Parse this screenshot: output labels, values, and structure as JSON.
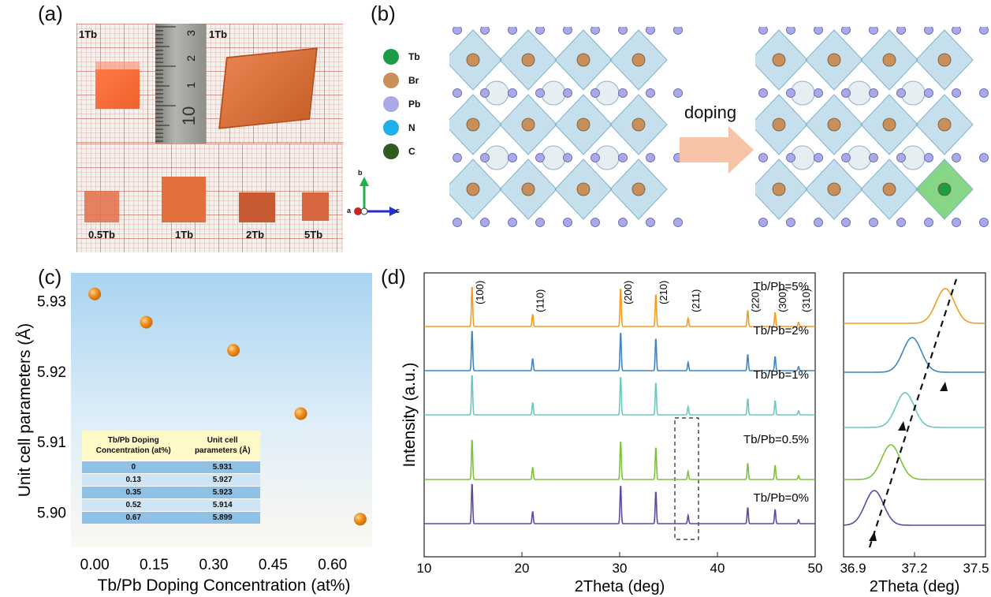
{
  "panels": {
    "a": {
      "letter": "(a)",
      "photo_labels": [
        "1Tb",
        "1Tb"
      ],
      "sample_labels": [
        "0.5Tb",
        "1Tb",
        "2Tb",
        "5Tb"
      ],
      "ruler_marks": [
        "3",
        "2",
        "1",
        "10"
      ],
      "axes": {
        "b": "b",
        "a": "a",
        "c": "c"
      }
    },
    "b": {
      "letter": "(b)",
      "legend": [
        {
          "label": "Tb",
          "color": "#1f9a45"
        },
        {
          "label": "Br",
          "color": "#c98f5a"
        },
        {
          "label": "Pb",
          "color": "#a9a9ea"
        },
        {
          "label": "N",
          "color": "#1fb0ea"
        },
        {
          "label": "C",
          "color": "#2f5a1f"
        }
      ],
      "arrow_label": "doping"
    },
    "c": {
      "letter": "(c)",
      "table": {
        "headers": [
          "Tb/Pb Doping Concentration (at%)",
          "Unit cell parameters (Å)"
        ],
        "rows": [
          [
            "0",
            "5.931"
          ],
          [
            "0.13",
            "5.927"
          ],
          [
            "0.35",
            "5.923"
          ],
          [
            "0.52",
            "5.914"
          ],
          [
            "0.67",
            "5.899"
          ]
        ]
      }
    },
    "d": {
      "letter": "(d)"
    }
  },
  "chart_data": [
    {
      "id": "c",
      "type": "scatter",
      "title": "",
      "xlabel": "Tb/Pb Doping Concentration (at%)",
      "ylabel": "Unit cell parameters (Å)",
      "xlim": [
        -0.06,
        0.7
      ],
      "ylim": [
        5.895,
        5.934
      ],
      "xticks": [
        "0.00",
        "0.15",
        "0.30",
        "0.45",
        "0.60"
      ],
      "yticks": [
        "5.90",
        "5.91",
        "5.92",
        "5.93"
      ],
      "x": [
        0,
        0.13,
        0.35,
        0.52,
        0.67
      ],
      "y": [
        5.931,
        5.927,
        5.923,
        5.914,
        5.899
      ],
      "marker_color": "#f08a1c"
    },
    {
      "id": "d-main",
      "type": "line",
      "xlabel": "2Theta (deg)",
      "ylabel": "Intensity (a.u.)",
      "xlim": [
        10,
        50
      ],
      "xticks": [
        "10",
        "20",
        "30",
        "40",
        "50"
      ],
      "series": [
        {
          "name": "Tb/Pb=5%",
          "color": "#f39c1e"
        },
        {
          "name": "Tb/Pb=2%",
          "color": "#3c86c6"
        },
        {
          "name": "Tb/Pb=1%",
          "color": "#6cc7be"
        },
        {
          "name": "Tb/Pb=0.5%",
          "color": "#7bc43a"
        },
        {
          "name": "Tb/Pb=0%",
          "color": "#5a4aa6"
        }
      ],
      "peaks": [
        {
          "x": 14.9,
          "h": 1.0,
          "label": "(100)"
        },
        {
          "x": 21.1,
          "h": 0.3,
          "label": "(110)"
        },
        {
          "x": 30.1,
          "h": 0.95,
          "label": "(200)"
        },
        {
          "x": 33.7,
          "h": 0.8,
          "label": "(210)"
        },
        {
          "x": 37.0,
          "h": 0.2,
          "label": "(211)"
        },
        {
          "x": 43.1,
          "h": 0.4,
          "label": "(220)"
        },
        {
          "x": 45.9,
          "h": 0.35,
          "label": "(300)"
        },
        {
          "x": 48.3,
          "h": 0.1,
          "label": "(310)"
        }
      ]
    },
    {
      "id": "d-inset",
      "type": "line",
      "xlabel": "2Theta (deg)",
      "xlim": [
        36.9,
        37.5
      ],
      "xticks": [
        "36.9",
        "37.2",
        "37.5"
      ],
      "peak_centers": [
        37.33,
        37.19,
        37.16,
        37.1,
        37.03
      ],
      "series": [
        {
          "name": "Tb/Pb=5%",
          "color": "#f39c1e"
        },
        {
          "name": "Tb/Pb=2%",
          "color": "#3c86c6"
        },
        {
          "name": "Tb/Pb=1%",
          "color": "#6cc7be"
        },
        {
          "name": "Tb/Pb=0.5%",
          "color": "#7bc43a"
        },
        {
          "name": "Tb/Pb=0%",
          "color": "#5a4aa6"
        }
      ]
    }
  ]
}
